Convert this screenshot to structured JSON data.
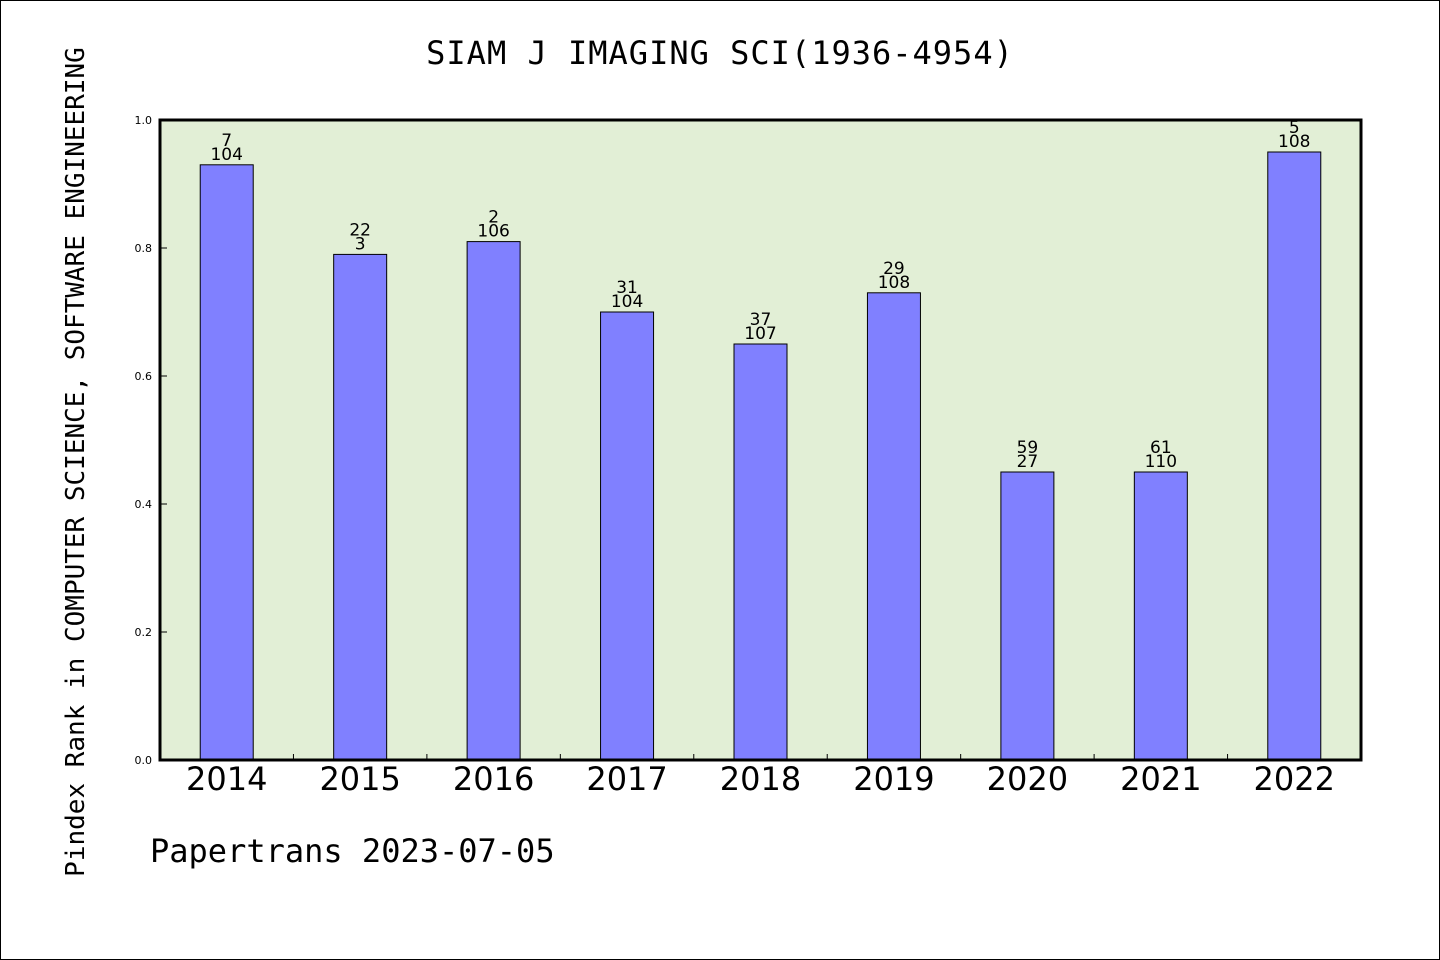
{
  "title": "SIAM J IMAGING SCI(1936-4954)",
  "ylabel": "Pindex Rank in COMPUTER SCIENCE, SOFTWARE ENGINEERING",
  "footer": "Papertrans 2023-07-05",
  "colors": {
    "plot_background": "#e2efd6",
    "bar_fill": "#8080ff",
    "bar_stroke": "#000000"
  },
  "chart_data": {
    "type": "bar",
    "title": "SIAM J IMAGING SCI(1936-4954)",
    "xlabel": "",
    "ylabel": "Pindex Rank in COMPUTER SCIENCE, SOFTWARE ENGINEERING",
    "ylim": [
      0,
      1.0
    ],
    "yticks": [
      "0.0",
      "0.2",
      "0.4",
      "0.6",
      "0.8",
      "1.0"
    ],
    "grid": false,
    "categories": [
      "2014",
      "2015",
      "2016",
      "2017",
      "2018",
      "2019",
      "2020",
      "2021",
      "2022"
    ],
    "values": [
      0.93,
      0.79,
      0.81,
      0.7,
      0.65,
      0.73,
      0.45,
      0.45,
      0.95
    ],
    "labels_top": [
      "7",
      "22",
      "2",
      "31",
      "37",
      "29",
      "59",
      "61",
      "5"
    ],
    "labels_bottom": [
      "104",
      "3",
      "106",
      "104",
      "107",
      "108",
      "27",
      "110",
      "108"
    ]
  }
}
